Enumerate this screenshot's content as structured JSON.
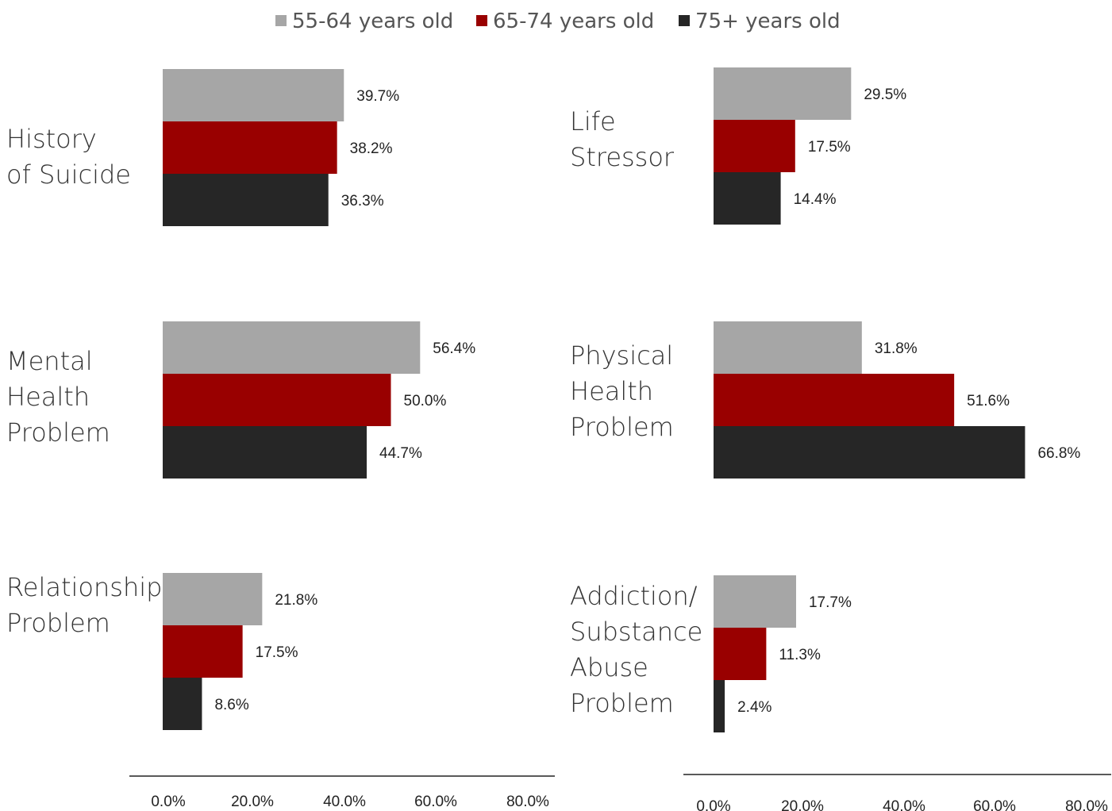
{
  "legend": [
    {
      "label": "55-64 years old",
      "color": "#A6A6A6"
    },
    {
      "label": "65-74 years old",
      "color": "#990000"
    },
    {
      "label": "75+ years old",
      "color": "#262626"
    }
  ],
  "chart_data": [
    {
      "type": "bar",
      "orientation": "horizontal",
      "xlim": [
        0,
        80
      ],
      "x_ticks": [
        "0.0%",
        "20.0%",
        "40.0%",
        "60.0%",
        "80.0%"
      ],
      "groups": [
        {
          "label_lines": [
            "History",
            "of Suicide"
          ],
          "values": [
            39.7,
            38.2,
            36.3
          ],
          "value_labels": [
            "39.7%",
            "38.2%",
            "36.3%"
          ]
        },
        {
          "label_lines": [
            "Mental",
            "Health",
            "Problem"
          ],
          "values": [
            56.4,
            50.0,
            44.7
          ],
          "value_labels": [
            "56.4%",
            "50.0%",
            "44.7%"
          ]
        },
        {
          "label_lines": [
            "Relationship",
            "Problem"
          ],
          "values": [
            21.8,
            17.5,
            8.6
          ],
          "value_labels": [
            "21.8%",
            "17.5%",
            "8.6%"
          ]
        }
      ]
    },
    {
      "type": "bar",
      "orientation": "horizontal",
      "xlim": [
        0,
        80
      ],
      "x_ticks": [
        "0.0%",
        "20.0%",
        "40.0%",
        "60.0%",
        "80.0%"
      ],
      "groups": [
        {
          "label_lines": [
            "Life",
            "Stressor"
          ],
          "values": [
            29.5,
            17.5,
            14.4
          ],
          "value_labels": [
            "29.5%",
            "17.5%",
            "14.4%"
          ]
        },
        {
          "label_lines": [
            "Physical",
            "Health",
            "Problem"
          ],
          "values": [
            31.8,
            51.6,
            66.8
          ],
          "value_labels": [
            "31.8%",
            "51.6%",
            "66.8%"
          ]
        },
        {
          "label_lines": [
            "Addiction/",
            "Substance",
            "Abuse",
            "Problem"
          ],
          "values": [
            17.7,
            11.3,
            2.4
          ],
          "value_labels": [
            "17.7%",
            "11.3%",
            "2.4%"
          ]
        }
      ]
    }
  ]
}
